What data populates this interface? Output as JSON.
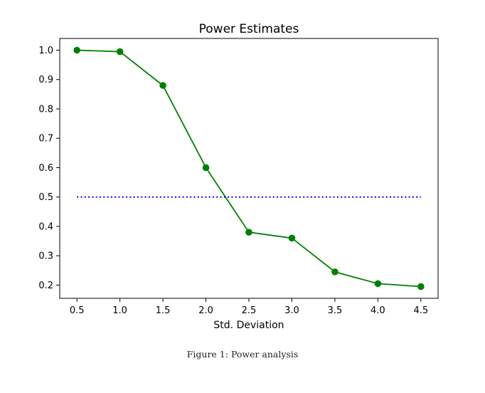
{
  "chart_data": {
    "type": "line",
    "title": "Power Estimates",
    "xlabel": "Std. Deviation",
    "ylabel": "",
    "xlim": [
      0.3,
      4.7
    ],
    "ylim": [
      0.155,
      1.04
    ],
    "xticks": [
      "0.5",
      "1.0",
      "1.5",
      "2.0",
      "2.5",
      "3.0",
      "3.5",
      "4.0",
      "4.5"
    ],
    "yticks": [
      "0.2",
      "0.3",
      "0.4",
      "0.5",
      "0.6",
      "0.7",
      "0.8",
      "0.9",
      "1.0"
    ],
    "grid": false,
    "series": [
      {
        "style": "solid-with-markers",
        "color": "#008000",
        "x": [
          0.5,
          1.0,
          1.5,
          2.0,
          2.5,
          3.0,
          3.5,
          4.0,
          4.5
        ],
        "y": [
          1.0,
          0.995,
          0.88,
          0.6,
          0.38,
          0.36,
          0.245,
          0.205,
          0.195
        ]
      },
      {
        "style": "dotted",
        "color": "#0000ff",
        "x": [
          0.5,
          4.5
        ],
        "y": [
          0.5,
          0.5
        ]
      }
    ]
  },
  "caption": "Figure 1: Power analysis"
}
